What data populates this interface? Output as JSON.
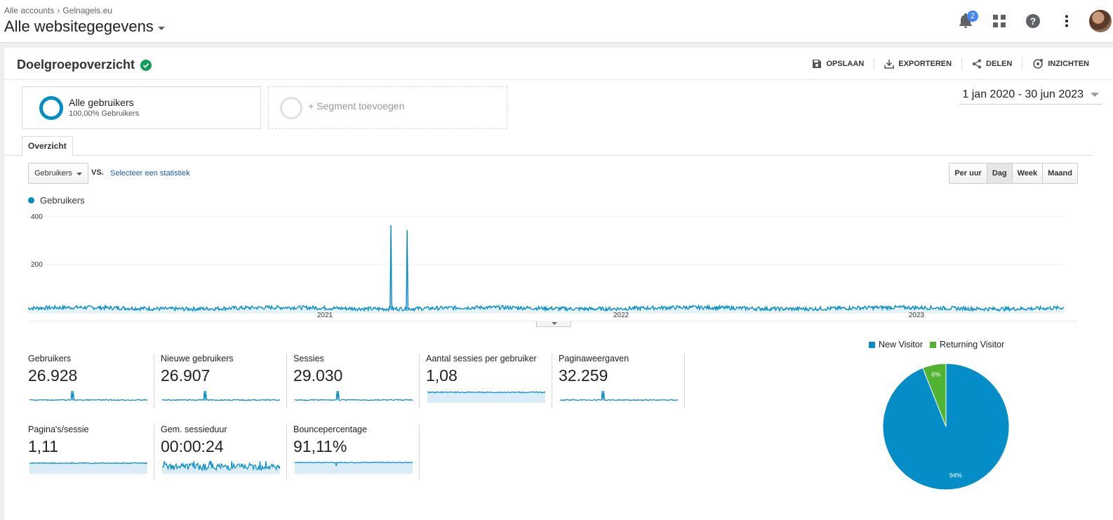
{
  "breadcrumb": {
    "account": "Alle accounts",
    "property": "Gelnagels.eu"
  },
  "view_name": "Alle websitegegevens",
  "notifications": {
    "count": "2"
  },
  "report": {
    "title": "Doelgroepoverzicht",
    "actions": {
      "save": "OPSLAAN",
      "export": "EXPORTEREN",
      "share": "DELEN",
      "insights": "INZICHTEN"
    }
  },
  "segments": {
    "active": {
      "name": "Alle gebruikers",
      "sub": "100,00% Gebruikers"
    },
    "add_label": "+ Segment toevoegen"
  },
  "date_range": "1 jan 2020 - 30 jun 2023",
  "tabs": {
    "overview": "Overzicht"
  },
  "metric_selector": {
    "selected": "Gebruikers",
    "vs": "VS.",
    "select_stat": "Selecteer een statistiek"
  },
  "granularity": {
    "hour": "Per uur",
    "day": "Dag",
    "week": "Week",
    "month": "Maand",
    "active": "day"
  },
  "colors": {
    "primary": "#058dc7",
    "secondary": "#50b432",
    "link": "#1a5ba8"
  },
  "chart_data": {
    "type": "line",
    "series": [
      {
        "name": "Gebruikers",
        "color": "#058dc7"
      }
    ],
    "y_ticks": [
      "400",
      "200"
    ],
    "y_range": [
      0,
      400
    ],
    "x_ticks": [
      "2021",
      "2022",
      "2023"
    ],
    "baseline_users_per_day": 20,
    "spikes": [
      {
        "approx_date": "2021-04",
        "value": 365
      },
      {
        "approx_date": "2021-05",
        "value": 345
      }
    ]
  },
  "stats": [
    {
      "label": "Gebruikers",
      "value": "26.928",
      "spark": "spike"
    },
    {
      "label": "Nieuwe gebruikers",
      "value": "26.907",
      "spark": "spike"
    },
    {
      "label": "Sessies",
      "value": "29.030",
      "spark": "spike"
    },
    {
      "label": "Aantal sessies per gebruiker",
      "value": "1,08",
      "spark": "flat"
    },
    {
      "label": "Paginaweergaven",
      "value": "32.259",
      "spark": "spike"
    },
    {
      "label": "Pagina's/sessie",
      "value": "1,11",
      "spark": "flat"
    },
    {
      "label": "Gem. sessieduur",
      "value": "00:00:24",
      "spark": "noisy"
    },
    {
      "label": "Bouncepercentage",
      "value": "91,11%",
      "spark": "flat-dip"
    }
  ],
  "pie": {
    "legend": [
      {
        "name": "New Visitor",
        "color": "#058dc7"
      },
      {
        "name": "Returning Visitor",
        "color": "#50b432"
      }
    ],
    "slices": [
      {
        "name": "New Visitor",
        "value": 94,
        "label": "94%"
      },
      {
        "name": "Returning Visitor",
        "value": 6,
        "label": "6%"
      }
    ]
  }
}
